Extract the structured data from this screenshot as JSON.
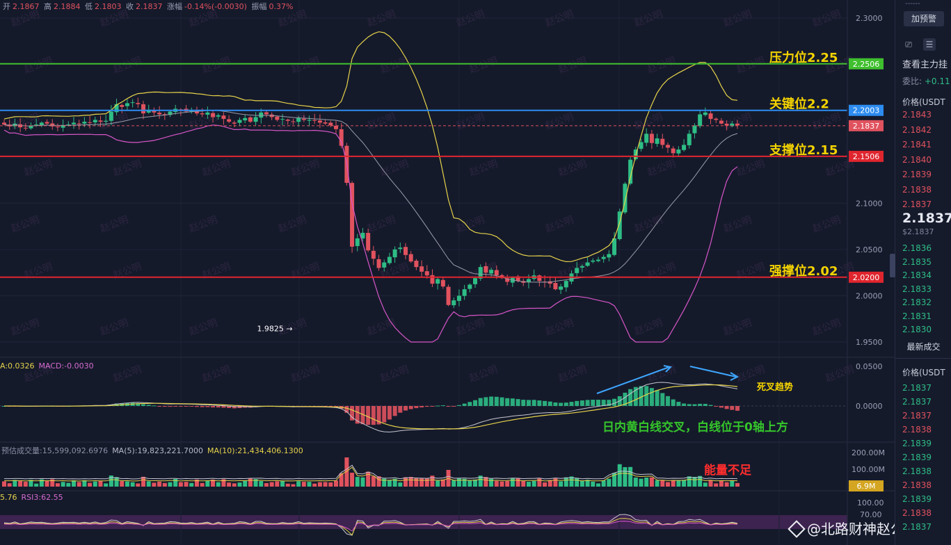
{
  "ohlc_header": {
    "open_label": "开",
    "open": "2.1867",
    "high_label": "高",
    "high": "2.1884",
    "low_label": "低",
    "low": "2.1803",
    "close_label": "收",
    "close": "2.1837",
    "change_label": "涨幅",
    "change": "-0.14%(-0.0030)",
    "amp_label": "振幅",
    "amp": "0.37%"
  },
  "macd_legend": {
    "dea": "A:0.0326",
    "macd": "MACD:-0.0030"
  },
  "volume_legend": {
    "est": "预估成交量:15,599,092.6976",
    "ma5": "MA(5):19,823,221.7000",
    "ma10": "MA(10):21,434,406.1300"
  },
  "rsi_legend": {
    "rsi2": "5.76",
    "rsi3": "RSI3:62.55"
  },
  "watermark_text": "赵公明",
  "credit": "@北路财神赵公明",
  "right_panel": {
    "dash": "------",
    "alert_button": "加预警",
    "depth_title": "查看主力挂",
    "ratio_label": "委比:",
    "ratio_value": "+0.11",
    "price_header": "价格(USDT",
    "asks": [
      "2.1843",
      "2.1842",
      "2.1841",
      "2.1840",
      "2.1839",
      "2.1838",
      "2.1837"
    ],
    "last_price": "2.1837",
    "last_price_sub": "$2.1837",
    "bids": [
      "2.1836",
      "2.1835",
      "2.1834",
      "2.1833",
      "2.1832",
      "2.1831",
      "2.1830"
    ],
    "latest_trades_title": "最新成交",
    "trades_header": "价格(USDT",
    "trades": [
      {
        "p": "2.1837",
        "s": "buy"
      },
      {
        "p": "2.1837",
        "s": "buy"
      },
      {
        "p": "2.1837",
        "s": "sell"
      },
      {
        "p": "2.1838",
        "s": "sell"
      },
      {
        "p": "2.1839",
        "s": "buy"
      },
      {
        "p": "2.1839",
        "s": "buy"
      },
      {
        "p": "2.1838",
        "s": "buy"
      },
      {
        "p": "2.1838",
        "s": "sell"
      },
      {
        "p": "2.1839",
        "s": "buy"
      },
      {
        "p": "2.1838",
        "s": "sell"
      },
      {
        "p": "2.1837",
        "s": "buy"
      }
    ]
  },
  "colors": {
    "up": "#2ebd85",
    "down": "#e0525e",
    "bg": "#151a2b",
    "resistance": "#3fbf2e",
    "key": "#2d8cf0",
    "support": "#e0252e"
  },
  "chart_data": {
    "type": "candlestick",
    "price_axis": {
      "min": 1.93,
      "max": 2.3,
      "ticks": [
        "2.3000",
        "2.2500",
        "2.2000",
        "2.1500",
        "2.1000",
        "2.0500",
        "2.0000",
        "1.9500"
      ]
    },
    "levels": [
      {
        "label": "压力位2.25",
        "value": 2.2506,
        "tag": "2.2506",
        "color": "#3fbf2e"
      },
      {
        "label": "关键位2.2",
        "value": 2.2003,
        "tag": "2.2003",
        "color": "#2d8cf0"
      },
      {
        "label": "支撑位2.15",
        "value": 2.1506,
        "tag": "2.1506",
        "color": "#e0252e"
      },
      {
        "label": "强撑位2.02",
        "value": 2.02,
        "tag": "2.0200",
        "color": "#e0252e"
      }
    ],
    "current_price": {
      "value": 2.1837,
      "tag": "2.1837"
    },
    "low_marker": {
      "value": 1.9825,
      "label": "1.9825",
      "index": 54
    },
    "closes": [
      2.185,
      2.183,
      2.186,
      2.182,
      2.181,
      2.184,
      2.185,
      2.187,
      2.186,
      2.183,
      2.182,
      2.184,
      2.185,
      2.187,
      2.186,
      2.188,
      2.187,
      2.19,
      2.188,
      2.189,
      2.199,
      2.207,
      2.204,
      2.208,
      2.209,
      2.207,
      2.197,
      2.201,
      2.198,
      2.196,
      2.195,
      2.199,
      2.202,
      2.201,
      2.199,
      2.2,
      2.197,
      2.196,
      2.198,
      2.193,
      2.195,
      2.191,
      2.188,
      2.186,
      2.19,
      2.192,
      2.188,
      2.193,
      2.198,
      2.196,
      2.193,
      2.19,
      2.191,
      2.189,
      2.188,
      2.192,
      2.19,
      2.19,
      2.189,
      2.187,
      2.186,
      2.184,
      2.18,
      2.162,
      2.122,
      2.053,
      2.062,
      2.068,
      2.049,
      2.04,
      2.03,
      2.036,
      2.042,
      2.05,
      2.052,
      2.044,
      2.037,
      2.031,
      2.026,
      2.022,
      2.013,
      2.018,
      2.01,
      1.99,
      1.995,
      2.0,
      2.007,
      2.012,
      2.019,
      2.031,
      2.025,
      2.028,
      2.022,
      2.019,
      2.015,
      2.02,
      2.016,
      2.014,
      2.018,
      2.022,
      2.016,
      2.015,
      2.013,
      2.007,
      2.01,
      2.016,
      2.024,
      2.03,
      2.032,
      2.036,
      2.038,
      2.039,
      2.042,
      2.045,
      2.062,
      2.091,
      2.121,
      2.147,
      2.158,
      2.166,
      2.175,
      2.165,
      2.17,
      2.163,
      2.16,
      2.154,
      2.158,
      2.163,
      2.175,
      2.184,
      2.196,
      2.198,
      2.191,
      2.19,
      2.186,
      2.184,
      2.186,
      2.184
    ],
    "bollinger": {
      "upper_peak": 2.294,
      "lower_trough": 1.95
    },
    "macd_axis": {
      "ticks": [
        "0.0500",
        "0.0000"
      ]
    },
    "volume_axis": {
      "ticks": [
        "200.00M",
        "100.00M"
      ],
      "current": "6.9M"
    },
    "rsi_axis": {
      "ticks": [
        "100.00",
        "70.00"
      ]
    },
    "annotations": {
      "macd_text": "日内黄白线交叉，白线位于0轴上方",
      "death_cross": "死叉趋势",
      "volume_text": "能量不足"
    }
  }
}
